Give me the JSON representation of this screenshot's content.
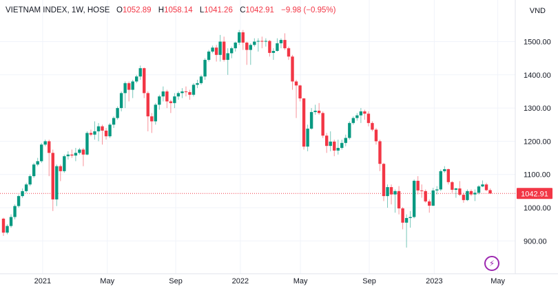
{
  "legend": {
    "symbol": "VIETNAM INDEX, 1W, HOSE",
    "o_label": "O",
    "o": "1052.89",
    "h_label": "H",
    "h": "1058.14",
    "l_label": "L",
    "l": "1041.26",
    "c_label": "C",
    "c": "1042.91",
    "change": "−9.98 (−0.95%)"
  },
  "currency": "VND",
  "colors": {
    "up": "#089981",
    "down": "#f23645",
    "grid": "#f0f3fa",
    "text": "#131722",
    "accent": "#9c27b0"
  },
  "chart_data": {
    "type": "candlestick",
    "interval": "1W",
    "first_open": 967,
    "close": [
      925,
      945,
      972,
      1005,
      1035,
      1050,
      1070,
      1095,
      1130,
      1140,
      1190,
      1200,
      1165,
      1025,
      1125,
      1110,
      1155,
      1160,
      1157,
      1165,
      1175,
      1160,
      1225,
      1220,
      1230,
      1245,
      1232,
      1215,
      1250,
      1270,
      1300,
      1345,
      1375,
      1355,
      1380,
      1395,
      1420,
      1345,
      1275,
      1260,
      1310,
      1335,
      1350,
      1320,
      1315,
      1335,
      1345,
      1350,
      1348,
      1340,
      1370,
      1375,
      1395,
      1445,
      1470,
      1482,
      1460,
      1500,
      1445,
      1465,
      1480,
      1497,
      1528,
      1497,
      1475,
      1490,
      1500,
      1502,
      1500,
      1502,
      1466,
      1472,
      1495,
      1505,
      1480,
      1455,
      1380,
      1368,
      1329,
      1184,
      1238,
      1288,
      1292,
      1285,
      1217,
      1186,
      1199,
      1172,
      1180,
      1195,
      1210,
      1255,
      1270,
      1278,
      1290,
      1283,
      1255,
      1235,
      1200,
      1132,
      1035,
      1062,
      1040,
      1050,
      998,
      955,
      969,
      972,
      1081,
      1052,
      1050,
      1019,
      1006,
      1052,
      1055,
      1110,
      1116,
      1077,
      1054,
      1058,
      1039,
      1023,
      1050,
      1040,
      1045,
      1064,
      1070,
      1052.89,
      1042.91
    ],
    "high": [
      970,
      950,
      980,
      1010,
      1040,
      1058,
      1075,
      1100,
      1135,
      1150,
      1195,
      1205,
      1205,
      1175,
      1130,
      1130,
      1160,
      1170,
      1175,
      1180,
      1180,
      1180,
      1230,
      1235,
      1260,
      1255,
      1250,
      1240,
      1255,
      1275,
      1305,
      1350,
      1380,
      1380,
      1385,
      1400,
      1428,
      1422,
      1350,
      1285,
      1315,
      1340,
      1365,
      1355,
      1325,
      1345,
      1350,
      1360,
      1365,
      1355,
      1375,
      1385,
      1400,
      1450,
      1475,
      1488,
      1490,
      1520,
      1515,
      1480,
      1485,
      1500,
      1535,
      1535,
      1500,
      1495,
      1510,
      1510,
      1515,
      1510,
      1505,
      1480,
      1510,
      1510,
      1525,
      1485,
      1460,
      1385,
      1370,
      1330,
      1250,
      1300,
      1310,
      1315,
      1290,
      1225,
      1230,
      1205,
      1205,
      1205,
      1220,
      1260,
      1275,
      1285,
      1300,
      1295,
      1290,
      1260,
      1240,
      1205,
      1135,
      1070,
      1070,
      1055,
      1065,
      1002,
      980,
      990,
      1085,
      1095,
      1070,
      1055,
      1025,
      1060,
      1065,
      1115,
      1125,
      1118,
      1080,
      1060,
      1080,
      1045,
      1055,
      1055,
      1055,
      1068,
      1082,
      1075,
      1058.14
    ],
    "low": [
      915,
      920,
      940,
      965,
      1000,
      1030,
      1045,
      1065,
      1090,
      1125,
      1135,
      1185,
      1095,
      990,
      1005,
      1080,
      1105,
      1145,
      1150,
      1140,
      1160,
      1125,
      1158,
      1215,
      1205,
      1200,
      1190,
      1205,
      1210,
      1240,
      1265,
      1290,
      1300,
      1320,
      1330,
      1375,
      1385,
      1330,
      1230,
      1225,
      1250,
      1295,
      1320,
      1300,
      1285,
      1300,
      1325,
      1330,
      1335,
      1325,
      1335,
      1360,
      1370,
      1385,
      1440,
      1465,
      1440,
      1440,
      1440,
      1400,
      1450,
      1470,
      1490,
      1475,
      1430,
      1430,
      1485,
      1470,
      1480,
      1485,
      1455,
      1445,
      1470,
      1480,
      1475,
      1445,
      1355,
      1270,
      1320,
      1175,
      1170,
      1235,
      1280,
      1280,
      1210,
      1165,
      1170,
      1155,
      1160,
      1175,
      1185,
      1205,
      1250,
      1262,
      1255,
      1265,
      1245,
      1230,
      1190,
      1110,
      1020,
      1000,
      1010,
      985,
      980,
      935,
      880,
      940,
      968,
      1040,
      1030,
      1015,
      985,
      1005,
      1040,
      1050,
      1105,
      1070,
      1045,
      1030,
      1035,
      1015,
      1020,
      1035,
      1020,
      1040,
      1062,
      1050,
      1041.26
    ],
    "y_ticks": [
      "900.00",
      "1000.00",
      "1100.00",
      "1200.00",
      "1300.00",
      "1400.00",
      "1500.00"
    ],
    "y_range": [
      835,
      1560
    ],
    "x_ticks": [
      {
        "label": "2021",
        "week": 10.3
      },
      {
        "label": "May",
        "week": 27.3
      },
      {
        "label": "Sep",
        "week": 45.3
      },
      {
        "label": "2022",
        "week": 62.3
      },
      {
        "label": "May",
        "week": 78.1
      },
      {
        "label": "Sep",
        "week": 96.2
      },
      {
        "label": "2023",
        "week": 113.3
      },
      {
        "label": "May",
        "week": 130
      },
      {
        "label": "",
        "week": 0
      }
    ],
    "last_price": "1042.91",
    "last_value": 1042.91,
    "grid": true
  }
}
